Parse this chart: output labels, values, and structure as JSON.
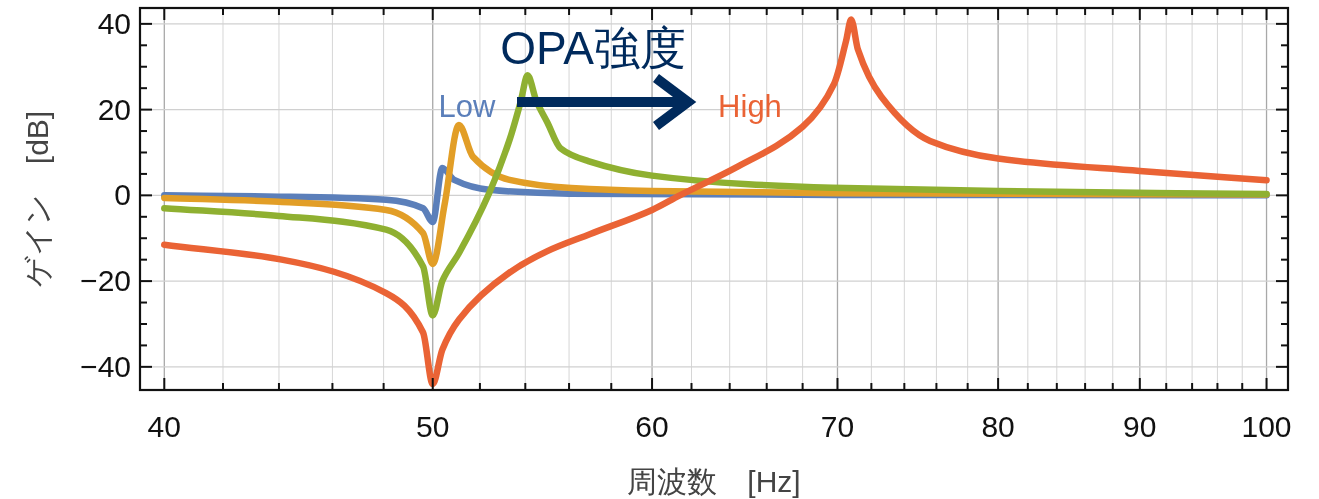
{
  "chart_data": {
    "type": "line",
    "xlabel": "周波数　[Hz]",
    "ylabel": "ゲイン　[dB]",
    "annotations": [
      "OPA強度",
      "Low",
      "High"
    ],
    "log": "x",
    "grid": true,
    "xlim": [
      39.2,
      101.8
    ],
    "ylim": [
      -45.4,
      43.7
    ],
    "xticks": [
      40,
      {
        "value": 42,
        "label": null
      },
      {
        "value": 44,
        "label": null
      },
      {
        "value": 46,
        "label": null
      },
      {
        "value": 48,
        "label": null
      },
      50,
      {
        "value": 52,
        "label": null
      },
      {
        "value": 54,
        "label": null
      },
      {
        "value": 56,
        "label": null
      },
      {
        "value": 58,
        "label": null
      },
      60,
      {
        "value": 62,
        "label": null
      },
      {
        "value": 64,
        "label": null
      },
      {
        "value": 66,
        "label": null
      },
      {
        "value": 68,
        "label": null
      },
      70,
      {
        "value": 72,
        "label": null
      },
      {
        "value": 74,
        "label": null
      },
      {
        "value": 76,
        "label": null
      },
      {
        "value": 78,
        "label": null
      },
      80,
      {
        "value": 82,
        "label": null
      },
      {
        "value": 84,
        "label": null
      },
      {
        "value": 86,
        "label": null
      },
      {
        "value": 88,
        "label": null
      },
      90,
      {
        "value": 92,
        "label": null
      },
      {
        "value": 94,
        "label": null
      },
      {
        "value": 96,
        "label": null
      },
      {
        "value": 98,
        "label": null
      },
      100
    ],
    "yticks": [
      {
        "value": -40,
        "label": "−40"
      },
      {
        "value": -35,
        "label": null
      },
      {
        "value": -30,
        "label": null
      },
      {
        "value": -25,
        "label": null
      },
      {
        "value": -20,
        "label": "−20"
      },
      {
        "value": -15,
        "label": null
      },
      {
        "value": -10,
        "label": null
      },
      {
        "value": -5,
        "label": null
      },
      0,
      {
        "value": 5,
        "label": null
      },
      {
        "value": 10,
        "label": null
      },
      {
        "value": 15,
        "label": null
      },
      20,
      {
        "value": 25,
        "label": null
      },
      {
        "value": 30,
        "label": null
      },
      {
        "value": 35,
        "label": null
      },
      40
    ],
    "series": [
      {
        "color": "#5b7fba",
        "x": [
          40,
          44,
          48.1,
          49.6,
          50,
          50.4,
          50.9,
          52.4,
          56,
          70,
          100
        ],
        "values": [
          0,
          -0.3,
          -1,
          -3,
          -6.2,
          6.4,
          3.6,
          1.3,
          0.4,
          0.1,
          0
        ]
      },
      {
        "color": "#e29e27",
        "x": [
          40,
          44,
          48.1,
          49.6,
          50,
          50.5,
          51.1,
          51.7,
          53.3,
          56.1,
          60,
          70,
          100
        ],
        "values": [
          -0.6,
          -1.5,
          -3.4,
          -8.8,
          -16,
          -2,
          16.4,
          9,
          3.6,
          1.7,
          1,
          0.5,
          0.2
        ]
      },
      {
        "color": "#8fb031",
        "x": [
          40,
          44,
          48.1,
          49.6,
          50,
          50.4,
          51.1,
          52.4,
          53.3,
          53.8,
          54.1,
          54.5,
          55,
          55.6,
          56.9,
          60,
          65,
          69.7,
          80,
          100
        ],
        "values": [
          -3,
          -4.8,
          -8,
          -16.6,
          -28,
          -20,
          -13.5,
          0.5,
          13,
          22,
          28,
          22,
          17,
          11,
          8,
          4.6,
          2.6,
          1.8,
          1,
          0.3
        ]
      },
      {
        "color": "#ea6335",
        "x": [
          40,
          44.1,
          48.1,
          49.6,
          50,
          50.4,
          51.1,
          53.3,
          55,
          57,
          60,
          61.4,
          64.3,
          68,
          69.8,
          70.5,
          70.8,
          71.2,
          72.6,
          75.6,
          80,
          90,
          100
        ],
        "values": [
          -11.5,
          -15,
          -22.8,
          -32,
          -44,
          -36,
          -29,
          -18,
          -13,
          -9,
          -3.4,
          0,
          6.4,
          16,
          26,
          36,
          41,
          34,
          23,
          12.7,
          8.6,
          5.7,
          3.5
        ]
      }
    ]
  }
}
